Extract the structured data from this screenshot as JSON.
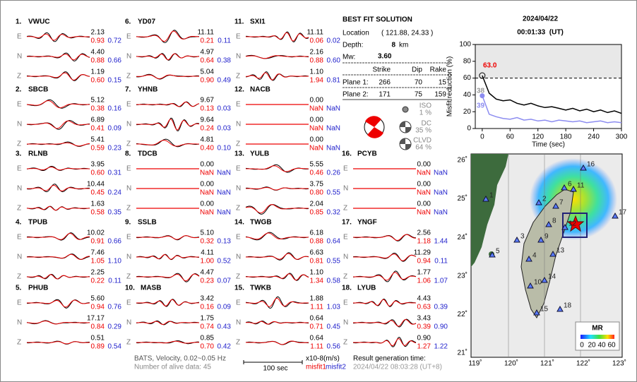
{
  "components": [
    "E",
    "N",
    "Z"
  ],
  "stations": [
    {
      "no": "1.",
      "name": "VWUC",
      "rows": [
        [
          "2.13",
          "0.93",
          "0.72"
        ],
        [
          "4.40",
          "0.88",
          "0.66"
        ],
        [
          "1.19",
          "0.60",
          "0.15"
        ]
      ]
    },
    {
      "no": "2.",
      "name": "SBCB",
      "rows": [
        [
          "5.12",
          "0.38",
          "0.16"
        ],
        [
          "6.89",
          "0.41",
          "0.09"
        ],
        [
          "5.41",
          "0.59",
          "0.23"
        ]
      ]
    },
    {
      "no": "3.",
      "name": "RLNB",
      "rows": [
        [
          "3.95",
          "0.60",
          "0.31"
        ],
        [
          "10.44",
          "0.45",
          "0.24"
        ],
        [
          "1.63",
          "0.58",
          "0.35"
        ]
      ]
    },
    {
      "no": "4.",
      "name": "TPUB",
      "rows": [
        [
          "10.02",
          "0.91",
          "0.66"
        ],
        [
          "7.46",
          "1.05",
          "1.10"
        ],
        [
          "2.25",
          "0.22",
          "0.11"
        ]
      ]
    },
    {
      "no": "5.",
      "name": "PHUB",
      "rows": [
        [
          "5.60",
          "0.94",
          "0.76"
        ],
        [
          "17.17",
          "0.84",
          "0.29"
        ],
        [
          "0.51",
          "0.89",
          "0.54"
        ]
      ]
    },
    {
      "no": "6.",
      "name": "YD07",
      "rows": [
        [
          "11.11",
          "0.21",
          "0.11"
        ],
        [
          "4.97",
          "0.64",
          "0.38"
        ],
        [
          "5.04",
          "0.90",
          "0.49"
        ]
      ]
    },
    {
      "no": "7.",
      "name": "YHNB",
      "rows": [
        [
          "9.67",
          "0.13",
          "0.03"
        ],
        [
          "9.64",
          "0.24",
          "0.03"
        ],
        [
          "4.81",
          "0.40",
          "0.10"
        ]
      ]
    },
    {
      "no": "8.",
      "name": "TDCB",
      "rows": [
        [
          "0.00",
          "NaN",
          "NaN"
        ],
        [
          "0.00",
          "NaN",
          "NaN"
        ],
        [
          "0.00",
          "NaN",
          "NaN"
        ]
      ]
    },
    {
      "no": "9.",
      "name": "SSLB",
      "rows": [
        [
          "5.10",
          "0.32",
          "0.13"
        ],
        [
          "4.11",
          "1.00",
          "0.52"
        ],
        [
          "4.47",
          "0.23",
          "0.07"
        ]
      ]
    },
    {
      "no": "10.",
      "name": "MASB",
      "rows": [
        [
          "3.42",
          "0.16",
          "0.09"
        ],
        [
          "1.75",
          "0.74",
          "0.43"
        ],
        [
          "0.85",
          "0.70",
          "0.42"
        ]
      ]
    },
    {
      "no": "11.",
      "name": "SXI1",
      "rows": [
        [
          "11.11",
          "0.06",
          "0.02"
        ],
        [
          "2.16",
          "0.88",
          "0.60"
        ],
        [
          "1.10",
          "1.94",
          "0.81"
        ]
      ]
    },
    {
      "no": "12.",
      "name": "NACB",
      "rows": [
        [
          "0.00",
          "NaN",
          "NaN"
        ],
        [
          "0.00",
          "NaN",
          "NaN"
        ],
        [
          "0.00",
          "NaN",
          "NaN"
        ]
      ]
    },
    {
      "no": "13.",
      "name": "YULB",
      "rows": [
        [
          "5.55",
          "0.46",
          "0.26"
        ],
        [
          "3.75",
          "0.80",
          "0.55"
        ],
        [
          "2.04",
          "0.85",
          "0.32"
        ]
      ]
    },
    {
      "no": "14.",
      "name": "TWGB",
      "rows": [
        [
          "6.18",
          "0.88",
          "0.64"
        ],
        [
          "6.63",
          "0.81",
          "0.55"
        ],
        [
          "1.10",
          "1.34",
          "0.58"
        ]
      ]
    },
    {
      "no": "15.",
      "name": "TWKB",
      "rows": [
        [
          "1.88",
          "1.11",
          "1.03"
        ],
        [
          "0.64",
          "0.71",
          "0.45"
        ],
        [
          "0.64",
          "1.11",
          "0.56"
        ]
      ]
    },
    {
      "no": "16.",
      "name": "PCYB",
      "rows": [
        [
          "0.00",
          "NaN",
          "NaN"
        ],
        [
          "0.00",
          "NaN",
          "NaN"
        ],
        [
          "0.00",
          "NaN",
          "NaN"
        ]
      ]
    },
    {
      "no": "17.",
      "name": "YNGF",
      "rows": [
        [
          "2.56",
          "1.18",
          "1.44"
        ],
        [
          "11.29",
          "0.94",
          "0.11"
        ],
        [
          "1.77",
          "1.06",
          "1.07"
        ]
      ]
    },
    {
      "no": "18.",
      "name": "LYUB",
      "rows": [
        [
          "4.43",
          "0.63",
          "0.39"
        ],
        [
          "3.43",
          "0.39",
          "0.90"
        ],
        [
          "0.90",
          "1.27",
          "1.22"
        ]
      ]
    }
  ],
  "solution": {
    "title": "BEST FIT SOLUTION",
    "location_label": "Location",
    "location": "( 121.88, 24.33 )",
    "depth_label": "Depth:",
    "depth": "8",
    "depth_unit": "km",
    "mw_label": "Mw:",
    "mw": "3.60",
    "headers": [
      "Strike",
      "Dip",
      "Rake"
    ],
    "planes": [
      {
        "label": "Plane 1:",
        "values": [
          "266",
          "70",
          "15"
        ]
      },
      {
        "label": "Plane 2:",
        "values": [
          "171",
          "75",
          "159"
        ]
      }
    ],
    "components": [
      {
        "name": "ISO",
        "percent": "1 %"
      },
      {
        "name": "DC",
        "percent": "35 %"
      },
      {
        "name": "CLVD",
        "percent": "64 %"
      }
    ]
  },
  "date": "2024/04/22",
  "time": "00:01:33  (UT)",
  "misfit_chart": {
    "type": "line",
    "y_label": "Misfit reduction (%)",
    "x_label": "Time (sec)",
    "x": [
      0,
      15,
      30,
      45,
      60,
      75,
      90,
      105,
      120,
      135,
      150,
      165,
      180,
      195,
      210,
      225,
      240,
      255,
      270,
      285,
      300
    ],
    "series": [
      {
        "color": "#000000",
        "values": [
          63,
          42,
          35,
          33,
          34,
          30,
          28,
          30,
          27,
          25,
          26,
          24,
          22,
          24,
          21,
          23,
          20,
          22,
          19,
          21,
          18
        ]
      },
      {
        "color": "#8c8cf0",
        "values": [
          39,
          17,
          14,
          12,
          11,
          13,
          10,
          11,
          9,
          10,
          8,
          10,
          9,
          8,
          9,
          7,
          8,
          9,
          7,
          8,
          7
        ]
      }
    ],
    "xlim": [
      -15,
      300
    ],
    "ylim": [
      0,
      100
    ],
    "xticks": [
      0,
      60,
      120,
      180,
      240,
      300
    ],
    "yticks": [
      0,
      20,
      40,
      60,
      80,
      100
    ],
    "reference_line": 60,
    "annotations": [
      "63.0",
      "38",
      "39"
    ]
  },
  "map": {
    "lon_ticks": [
      "119˚",
      "120˚",
      "121˚",
      "122˚",
      "123˚"
    ],
    "lat_ticks": [
      "26˚",
      "25˚",
      "24˚",
      "23˚",
      "22˚",
      "21˚"
    ],
    "station_labels": [
      "1",
      "2",
      "3",
      "4",
      "5",
      "6",
      "7",
      "8",
      "9",
      "10",
      "11",
      "12",
      "13",
      "14",
      "15",
      "16",
      "17",
      "18"
    ],
    "colorbar_title": "MR",
    "colorbar_ticks": [
      "0",
      "20",
      "40",
      "60"
    ]
  },
  "footer": {
    "filter": "BATS, Velocity, 0.02~0.05 Hz",
    "alive": "Number of alive data: 45",
    "scale": "100 sec",
    "unit": "x10-8(m/s)",
    "misfit1": "misfit1",
    "misfit2": "misfit2",
    "result_label": "Result generation time:",
    "result_time": "2024/04/22 08:03:28 (UT+8)"
  }
}
